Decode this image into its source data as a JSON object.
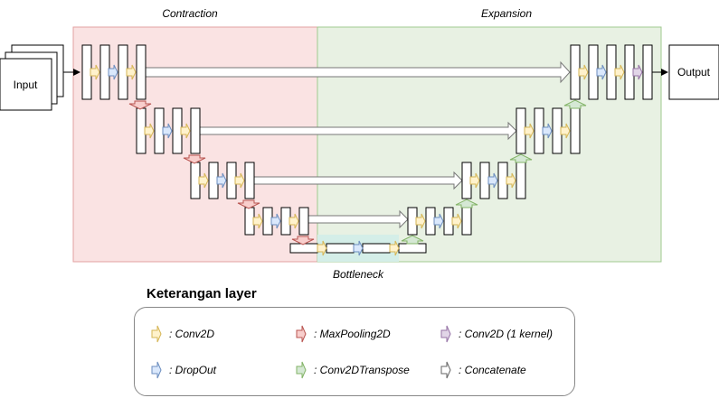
{
  "regions": {
    "contraction": "Contraction",
    "expansion": "Expansion",
    "bottleneck": "Bottleneck"
  },
  "nodes": {
    "input": "Input",
    "output": "Output"
  },
  "legend": {
    "title": "Keterangan layer",
    "items": [
      {
        "label": ": Conv2D",
        "color": "#fff2cc",
        "stroke": "#d6b656"
      },
      {
        "label": ": MaxPooling2D",
        "color": "#f8cecc",
        "stroke": "#b85450"
      },
      {
        "label": ": Conv2D (1 kernel)",
        "color": "#e1d5e7",
        "stroke": "#9673a6"
      },
      {
        "label": ": DropOut",
        "color": "#dae8fc",
        "stroke": "#6c8ebf"
      },
      {
        "label": ": Conv2DTranspose",
        "color": "#d5e8d4",
        "stroke": "#82b366"
      },
      {
        "label": ": Concatenate",
        "color": "#ffffff",
        "stroke": "#666666"
      }
    ]
  },
  "colors": {
    "contraction_bg": "#fae3e3",
    "contraction_border": "#e3a2a2",
    "expansion_bg": "#e8f1e3",
    "expansion_border": "#9fca8f",
    "bottleneck_bg": "#d4eee8"
  }
}
